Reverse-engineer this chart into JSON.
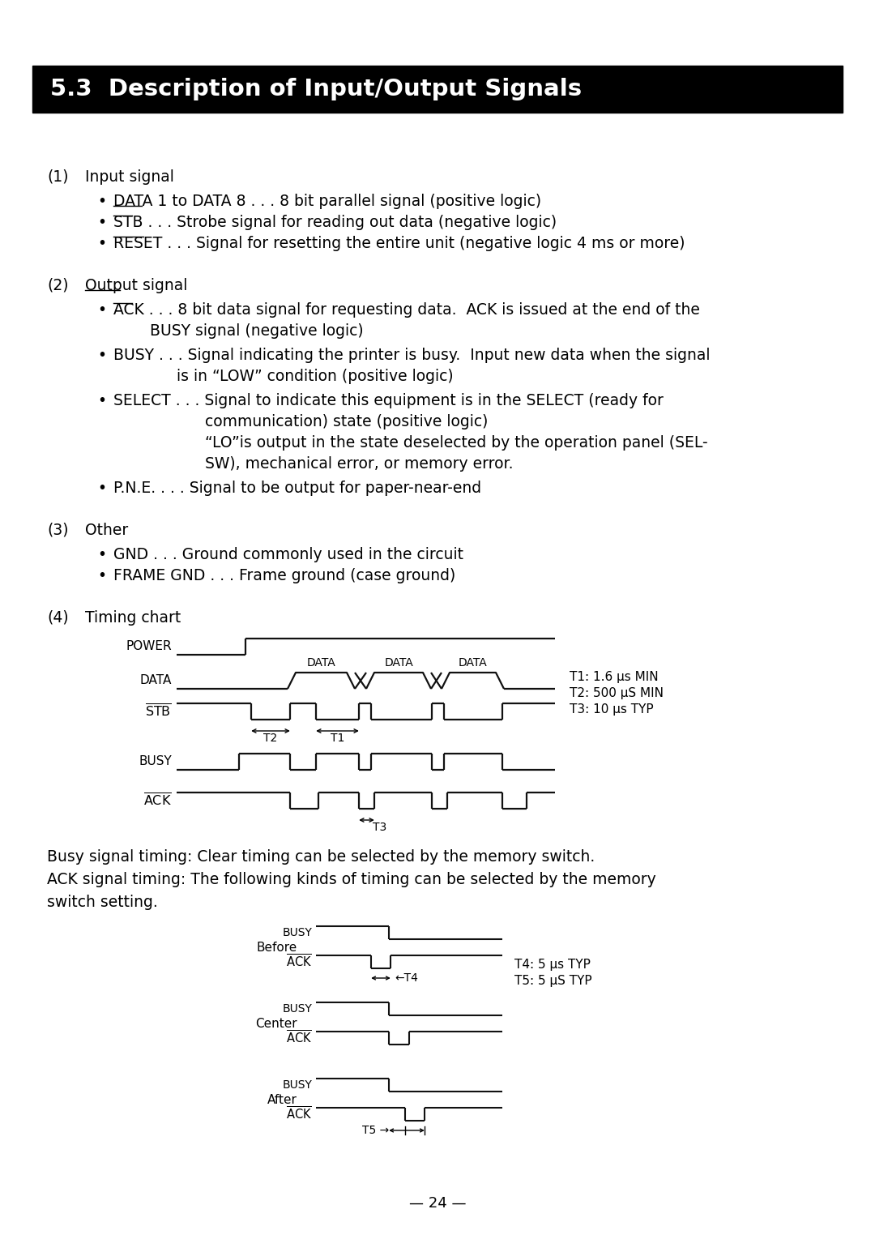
{
  "title": "5.3  Description of Input/Output Signals",
  "bg_color": "#ffffff",
  "title_bg": "#000000",
  "title_fg": "#ffffff",
  "timing_note1": "T1: 1.6 μs MIN",
  "timing_note2": "T2: 500 μS MIN",
  "timing_note3": "T3: 10 μs TYP",
  "timing_note4": "T4: 5 μs TYP",
  "timing_note5": "T5: 5 μS TYP",
  "busy_text1": "Busy signal timing: Clear timing can be selected by the memory switch.",
  "busy_text2": "ACK signal timing: The following kinds of timing can be selected by the memory",
  "busy_text3": "switch setting.",
  "footer": "— 24 —"
}
